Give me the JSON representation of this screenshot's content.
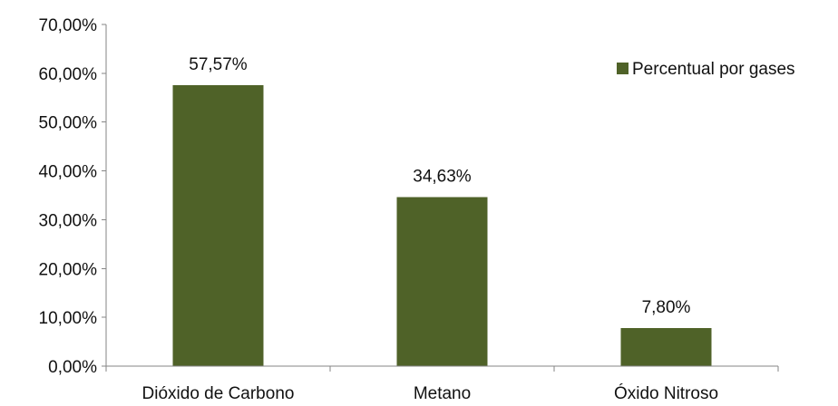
{
  "chart_data": {
    "type": "bar",
    "categories": [
      "Dióxido de Carbono",
      "Metano",
      "Óxido Nitroso"
    ],
    "series": [
      {
        "name": "Percentual por gases",
        "values": [
          57.57,
          34.63,
          7.8
        ],
        "labels": [
          "57,57%",
          "34,63%",
          "7,80%"
        ],
        "color": "#4F6228"
      }
    ],
    "ylim": [
      0,
      70
    ],
    "yticks": [
      0,
      10,
      20,
      30,
      40,
      50,
      60,
      70
    ],
    "ytick_labels": [
      "0,00%",
      "10,00%",
      "20,00%",
      "30,00%",
      "40,00%",
      "50,00%",
      "60,00%",
      "70,00%"
    ],
    "grid": false,
    "legend_position": "right",
    "title": "",
    "xlabel": "",
    "ylabel": ""
  }
}
